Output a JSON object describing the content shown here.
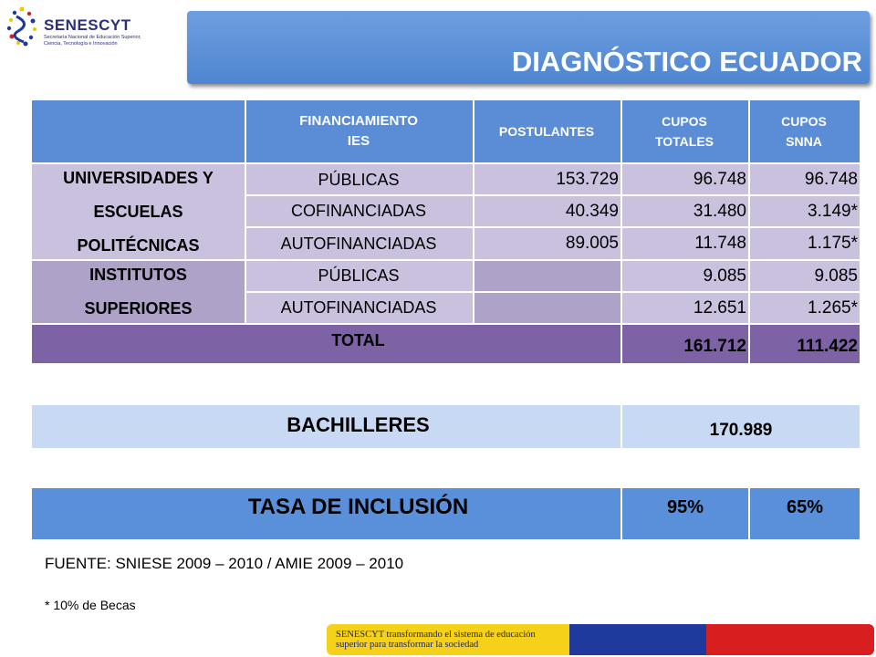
{
  "logo": {
    "name": "SENESCYT",
    "subtitle": "Secretaría Nacional de Educación Superior, Ciencia, Tecnología e Innovación"
  },
  "title": "DIAGNÓSTICO ECUADOR",
  "table": {
    "headers": [
      "",
      "FINANCIAMIENTO IES",
      "POSTULANTES",
      "CUPOS TOTALES",
      "CUPOS SNNA"
    ],
    "groups": [
      {
        "name": "UNIVERSIDADES Y ESCUELAS POLITÉCNICAS",
        "rows": [
          {
            "financiamiento": "PÚBLICAS",
            "postulantes": "153.729",
            "cupos_totales": "96.748",
            "cupos_snna": "96.748"
          },
          {
            "financiamiento": "COFINANCIADAS",
            "postulantes": "40.349",
            "cupos_totales": "31.480",
            "cupos_snna": "3.149*"
          },
          {
            "financiamiento": "AUTOFINANCIADAS",
            "postulantes": "89.005",
            "cupos_totales": "11.748",
            "cupos_snna": "1.175*"
          }
        ]
      },
      {
        "name": "INSTITUTOS SUPERIORES",
        "rows": [
          {
            "financiamiento": "PÚBLICAS",
            "postulantes": "",
            "cupos_totales": "9.085",
            "cupos_snna": "9.085"
          },
          {
            "financiamiento": "AUTOFINANCIADAS",
            "postulantes": "",
            "cupos_totales": "12.651",
            "cupos_snna": "1.265*"
          }
        ]
      }
    ],
    "total": {
      "label": "TOTAL",
      "cupos_totales": "161.712",
      "cupos_snna": "111.422"
    }
  },
  "bachilleres": {
    "label": "BACHILLERES",
    "value": "170.989"
  },
  "tasa": {
    "label": "TASA DE INCLUSIÓN",
    "cupos_totales": "95%",
    "cupos_snna": "65%"
  },
  "fuente": "FUENTE: SNIESE 2009 – 2010 / AMIE 2009 – 2010",
  "nota": "* 10%  de Becas",
  "footer": {
    "text": "SENESCYT transformando el sistema de educación superior para transformar la sociedad",
    "colors": [
      "#f5d11a",
      "#1e3a9c",
      "#d81e1e"
    ]
  }
}
